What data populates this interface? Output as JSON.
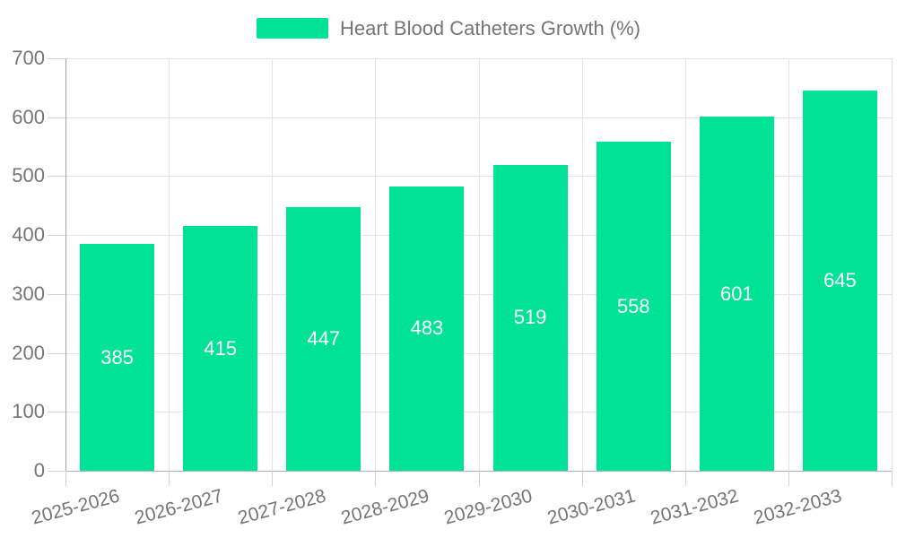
{
  "chart_data": {
    "type": "bar",
    "title": "Heart Blood Catheters Growth (%)",
    "categories": [
      "2025-2026",
      "2026-2027",
      "2027-2028",
      "2028-2029",
      "2029-2030",
      "2030-2031",
      "2031-2032",
      "2032-2033"
    ],
    "values": [
      385,
      415,
      447,
      483,
      519,
      558,
      601,
      645
    ],
    "xlabel": "",
    "ylabel": "",
    "ylim": [
      0,
      700
    ],
    "ytick_step": 100,
    "ytick_labels": [
      "0",
      "100",
      "200",
      "300",
      "400",
      "500",
      "600",
      "700"
    ],
    "grid": true,
    "legend_position": "top",
    "bar_color": "#00E396",
    "value_label_color": "#FFFFFF",
    "axis_text_color": "#757575"
  }
}
